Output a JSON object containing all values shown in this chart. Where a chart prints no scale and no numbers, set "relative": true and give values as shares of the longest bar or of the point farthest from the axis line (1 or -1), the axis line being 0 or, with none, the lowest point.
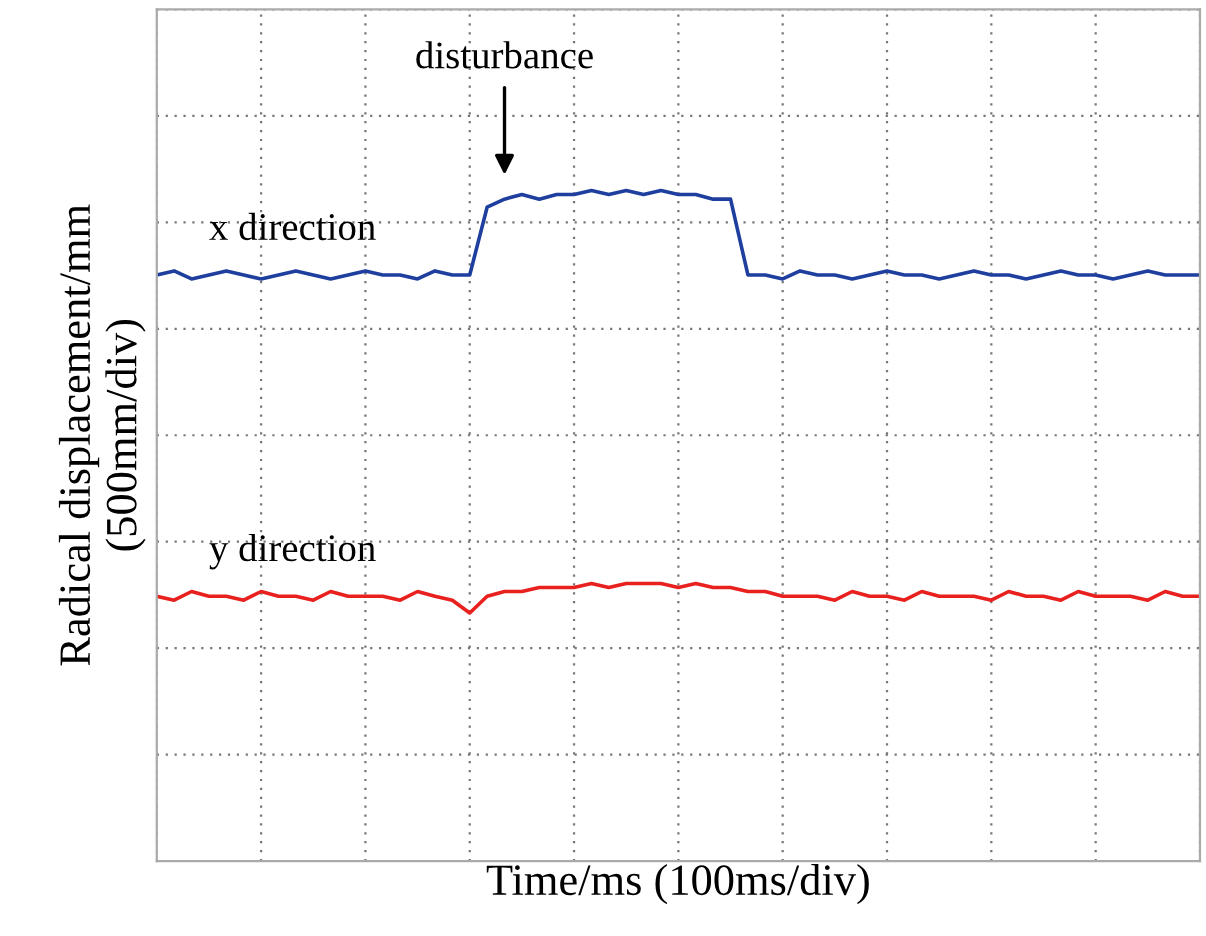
{
  "chart_data": {
    "type": "line",
    "relative": true,
    "xlabel": "Time/ms (100ms/div)",
    "ylabel": "Radical displacement/mm\n(500mm/div)",
    "categories": [
      null,
      null,
      null,
      null,
      null,
      null,
      null,
      null,
      null,
      null,
      null,
      null,
      null,
      null,
      null,
      null,
      null,
      null,
      null,
      null,
      null,
      null,
      null,
      null,
      null,
      null,
      null,
      null,
      null,
      null,
      null,
      null,
      null,
      null,
      null,
      null,
      null,
      null,
      null,
      null,
      null,
      null,
      null,
      null,
      null,
      null,
      null,
      null,
      null,
      null,
      null,
      null,
      null,
      null,
      null,
      null,
      null,
      null,
      null,
      null,
      null
    ],
    "series": [
      {
        "name": "x direction",
        "color": "#1f3f9f",
        "values": [
          0.874,
          0.88,
          0.868,
          0.874,
          0.88,
          0.874,
          0.868,
          0.874,
          0.88,
          0.874,
          0.868,
          0.874,
          0.88,
          0.874,
          0.874,
          0.868,
          0.88,
          0.874,
          0.874,
          0.975,
          0.987,
          0.994,
          0.987,
          0.994,
          0.994,
          1.0,
          0.994,
          1.0,
          0.994,
          1.0,
          0.994,
          0.994,
          0.987,
          0.987,
          0.874,
          0.874,
          0.868,
          0.88,
          0.874,
          0.874,
          0.868,
          0.874,
          0.88,
          0.874,
          0.874,
          0.868,
          0.874,
          0.88,
          0.874,
          0.874,
          0.868,
          0.874,
          0.88,
          0.874,
          0.874,
          0.868,
          0.874,
          0.88,
          0.874,
          0.874,
          0.874
        ]
      },
      {
        "name": "y direction",
        "color": "#e8201e",
        "values": [
          0.395,
          0.389,
          0.402,
          0.395,
          0.395,
          0.389,
          0.402,
          0.395,
          0.395,
          0.389,
          0.402,
          0.395,
          0.395,
          0.395,
          0.389,
          0.402,
          0.395,
          0.389,
          0.37,
          0.395,
          0.402,
          0.402,
          0.408,
          0.408,
          0.408,
          0.414,
          0.408,
          0.414,
          0.414,
          0.414,
          0.408,
          0.414,
          0.408,
          0.408,
          0.402,
          0.402,
          0.395,
          0.395,
          0.395,
          0.389,
          0.402,
          0.395,
          0.395,
          0.389,
          0.402,
          0.395,
          0.395,
          0.395,
          0.389,
          0.402,
          0.395,
          0.395,
          0.389,
          0.402,
          0.395,
          0.395,
          0.395,
          0.389,
          0.402,
          0.395,
          0.395
        ]
      }
    ],
    "annotations": [
      "disturbance"
    ],
    "grid": true,
    "tick_labels": false,
    "line_style": "solid",
    "marker": "none",
    "legend": false
  }
}
